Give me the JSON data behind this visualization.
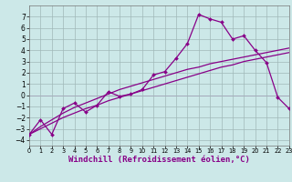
{
  "xlabel": "Windchill (Refroidissement éolien,°C)",
  "background_color": "#cce8e8",
  "grid_color": "#a0b8b8",
  "line_color": "#880088",
  "hours": [
    0,
    1,
    2,
    3,
    4,
    5,
    6,
    7,
    8,
    9,
    10,
    11,
    12,
    13,
    14,
    15,
    16,
    17,
    18,
    19,
    20,
    21,
    22,
    23
  ],
  "windchill": [
    -3.5,
    -2.2,
    -3.5,
    -1.2,
    -0.7,
    -1.5,
    -0.9,
    0.3,
    -0.1,
    0.1,
    0.5,
    1.8,
    2.1,
    3.3,
    4.6,
    7.2,
    6.8,
    6.5,
    5.0,
    5.3,
    4.0,
    2.9,
    -0.2,
    -1.2
  ],
  "trend1": [
    -3.5,
    -2.8,
    -2.2,
    -1.6,
    -1.1,
    -0.7,
    -0.3,
    0.1,
    0.5,
    0.8,
    1.1,
    1.4,
    1.7,
    2.0,
    2.3,
    2.5,
    2.8,
    3.0,
    3.2,
    3.4,
    3.6,
    3.8,
    4.0,
    4.2
  ],
  "trend2": [
    -3.5,
    -3.0,
    -2.5,
    -2.0,
    -1.6,
    -1.2,
    -0.9,
    -0.5,
    -0.2,
    0.1,
    0.4,
    0.7,
    1.0,
    1.3,
    1.6,
    1.9,
    2.2,
    2.5,
    2.7,
    3.0,
    3.2,
    3.4,
    3.6,
    3.8
  ],
  "ylim": [
    -4.5,
    8.0
  ],
  "xlim": [
    0,
    23
  ],
  "yticks": [
    -4,
    -3,
    -2,
    -1,
    0,
    1,
    2,
    3,
    4,
    5,
    6,
    7
  ],
  "xticks": [
    0,
    1,
    2,
    3,
    4,
    5,
    6,
    7,
    8,
    9,
    10,
    11,
    12,
    13,
    14,
    15,
    16,
    17,
    18,
    19,
    20,
    21,
    22,
    23
  ],
  "xlabel_color": "#880088",
  "xlabel_fontsize": 6.5,
  "ytick_fontsize": 5.5,
  "xtick_fontsize": 4.8
}
